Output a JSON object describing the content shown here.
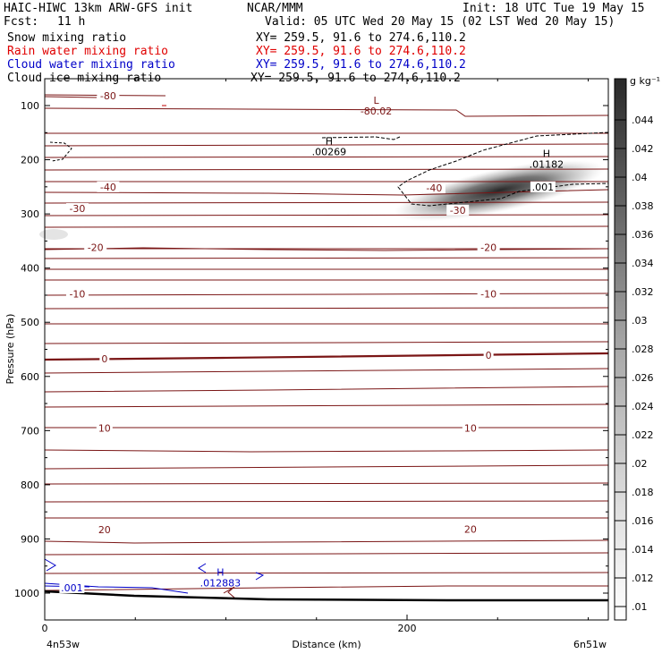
{
  "header": {
    "model": "HAIC-HIWC 13km ARW-GFS init",
    "org": "NCAR/MMM",
    "init": "Init: 18 UTC Tue 19 May 15",
    "fcst_label": "Fcst:",
    "fcst_value": "11 h",
    "valid": "Valid: 05 UTC Wed 20 May 15 (02 LST Wed 20 May 15)"
  },
  "fields": [
    {
      "name": "Snow mixing ratio",
      "xy": "XY= 259.5, 91.6 to 274.6,110.2",
      "color": "#000000"
    },
    {
      "name": "Rain water mixing ratio",
      "xy": "XY= 259.5, 91.6 to 274.6,110.2",
      "color": "#e00000"
    },
    {
      "name": "Cloud water mixing ratio",
      "xy": "XY= 259.5, 91.6 to 274.6,110.2",
      "color": "#0000c8"
    },
    {
      "name": "Cloud ice mixing ratio",
      "xy": "XY= 259.5, 91.6 to 274.6,110.2",
      "color": "#000000"
    }
  ],
  "colors": {
    "temperature_contour": "#7a1515",
    "cloud_water_contour": "#0000c8",
    "snow_shading": "#1a1a1a",
    "terrain": "#000000"
  },
  "chart_data": {
    "type": "heatmap",
    "xlabel": "Distance (km)",
    "ylabel": "Pressure (hPa)",
    "x_ticks": [
      0,
      200
    ],
    "y_ticks": [
      100,
      200,
      300,
      400,
      500,
      600,
      700,
      800,
      900,
      1000
    ],
    "x_endpoint_left": "4n53w",
    "x_endpoint_right": "6n51w",
    "colorbar": {
      "unit": "g kg⁻¹",
      "ticks": [
        ".01",
        ".012",
        ".014",
        ".016",
        ".018",
        ".02",
        ".022",
        ".024",
        ".026",
        ".028",
        ".03",
        ".032",
        ".034",
        ".036",
        ".038",
        ".04",
        ".042",
        ".044"
      ]
    },
    "temperature_labels": [
      {
        "text": "-80",
        "x": 35,
        "p": 82
      },
      {
        "text": "-40",
        "x": 35,
        "p": 250
      },
      {
        "text": "-30",
        "x": 18,
        "p": 290
      },
      {
        "text": "-20",
        "x": 28,
        "p": 362
      },
      {
        "text": "-10",
        "x": 18,
        "p": 448
      },
      {
        "text": "0",
        "x": 33,
        "p": 567
      },
      {
        "text": "10",
        "x": 33,
        "p": 695
      },
      {
        "text": "20",
        "x": 33,
        "p": 883
      },
      {
        "text": "-40",
        "x": 215,
        "p": 252
      },
      {
        "text": "-30",
        "x": 228,
        "p": 293
      },
      {
        "text": "-20",
        "x": 245,
        "p": 362
      },
      {
        "text": "-10",
        "x": 245,
        "p": 448
      },
      {
        "text": "0",
        "x": 245,
        "p": 561
      },
      {
        "text": "10",
        "x": 235,
        "p": 695
      },
      {
        "text": "20",
        "x": 235,
        "p": 882
      }
    ],
    "extrema": [
      {
        "symbol": "L",
        "value": "-80.02",
        "x": 183,
        "p": 97,
        "color": "#7a1515"
      },
      {
        "symbol": "H",
        "value": ".00269",
        "x": 157,
        "p": 172,
        "color": "#000000"
      },
      {
        "symbol": "H",
        "value": ".01182",
        "x": 277,
        "p": 195,
        "color": "#000000"
      },
      {
        "symbol": "H",
        "value": ".012883",
        "x": 97,
        "p": 968,
        "color": "#0000c8"
      }
    ],
    "contour_labels": [
      {
        "text": ".001",
        "x": 275,
        "p": 250,
        "color": "#000000"
      },
      {
        "text": ".001",
        "x": 15,
        "p": 990,
        "color": "#0000c8"
      }
    ]
  }
}
